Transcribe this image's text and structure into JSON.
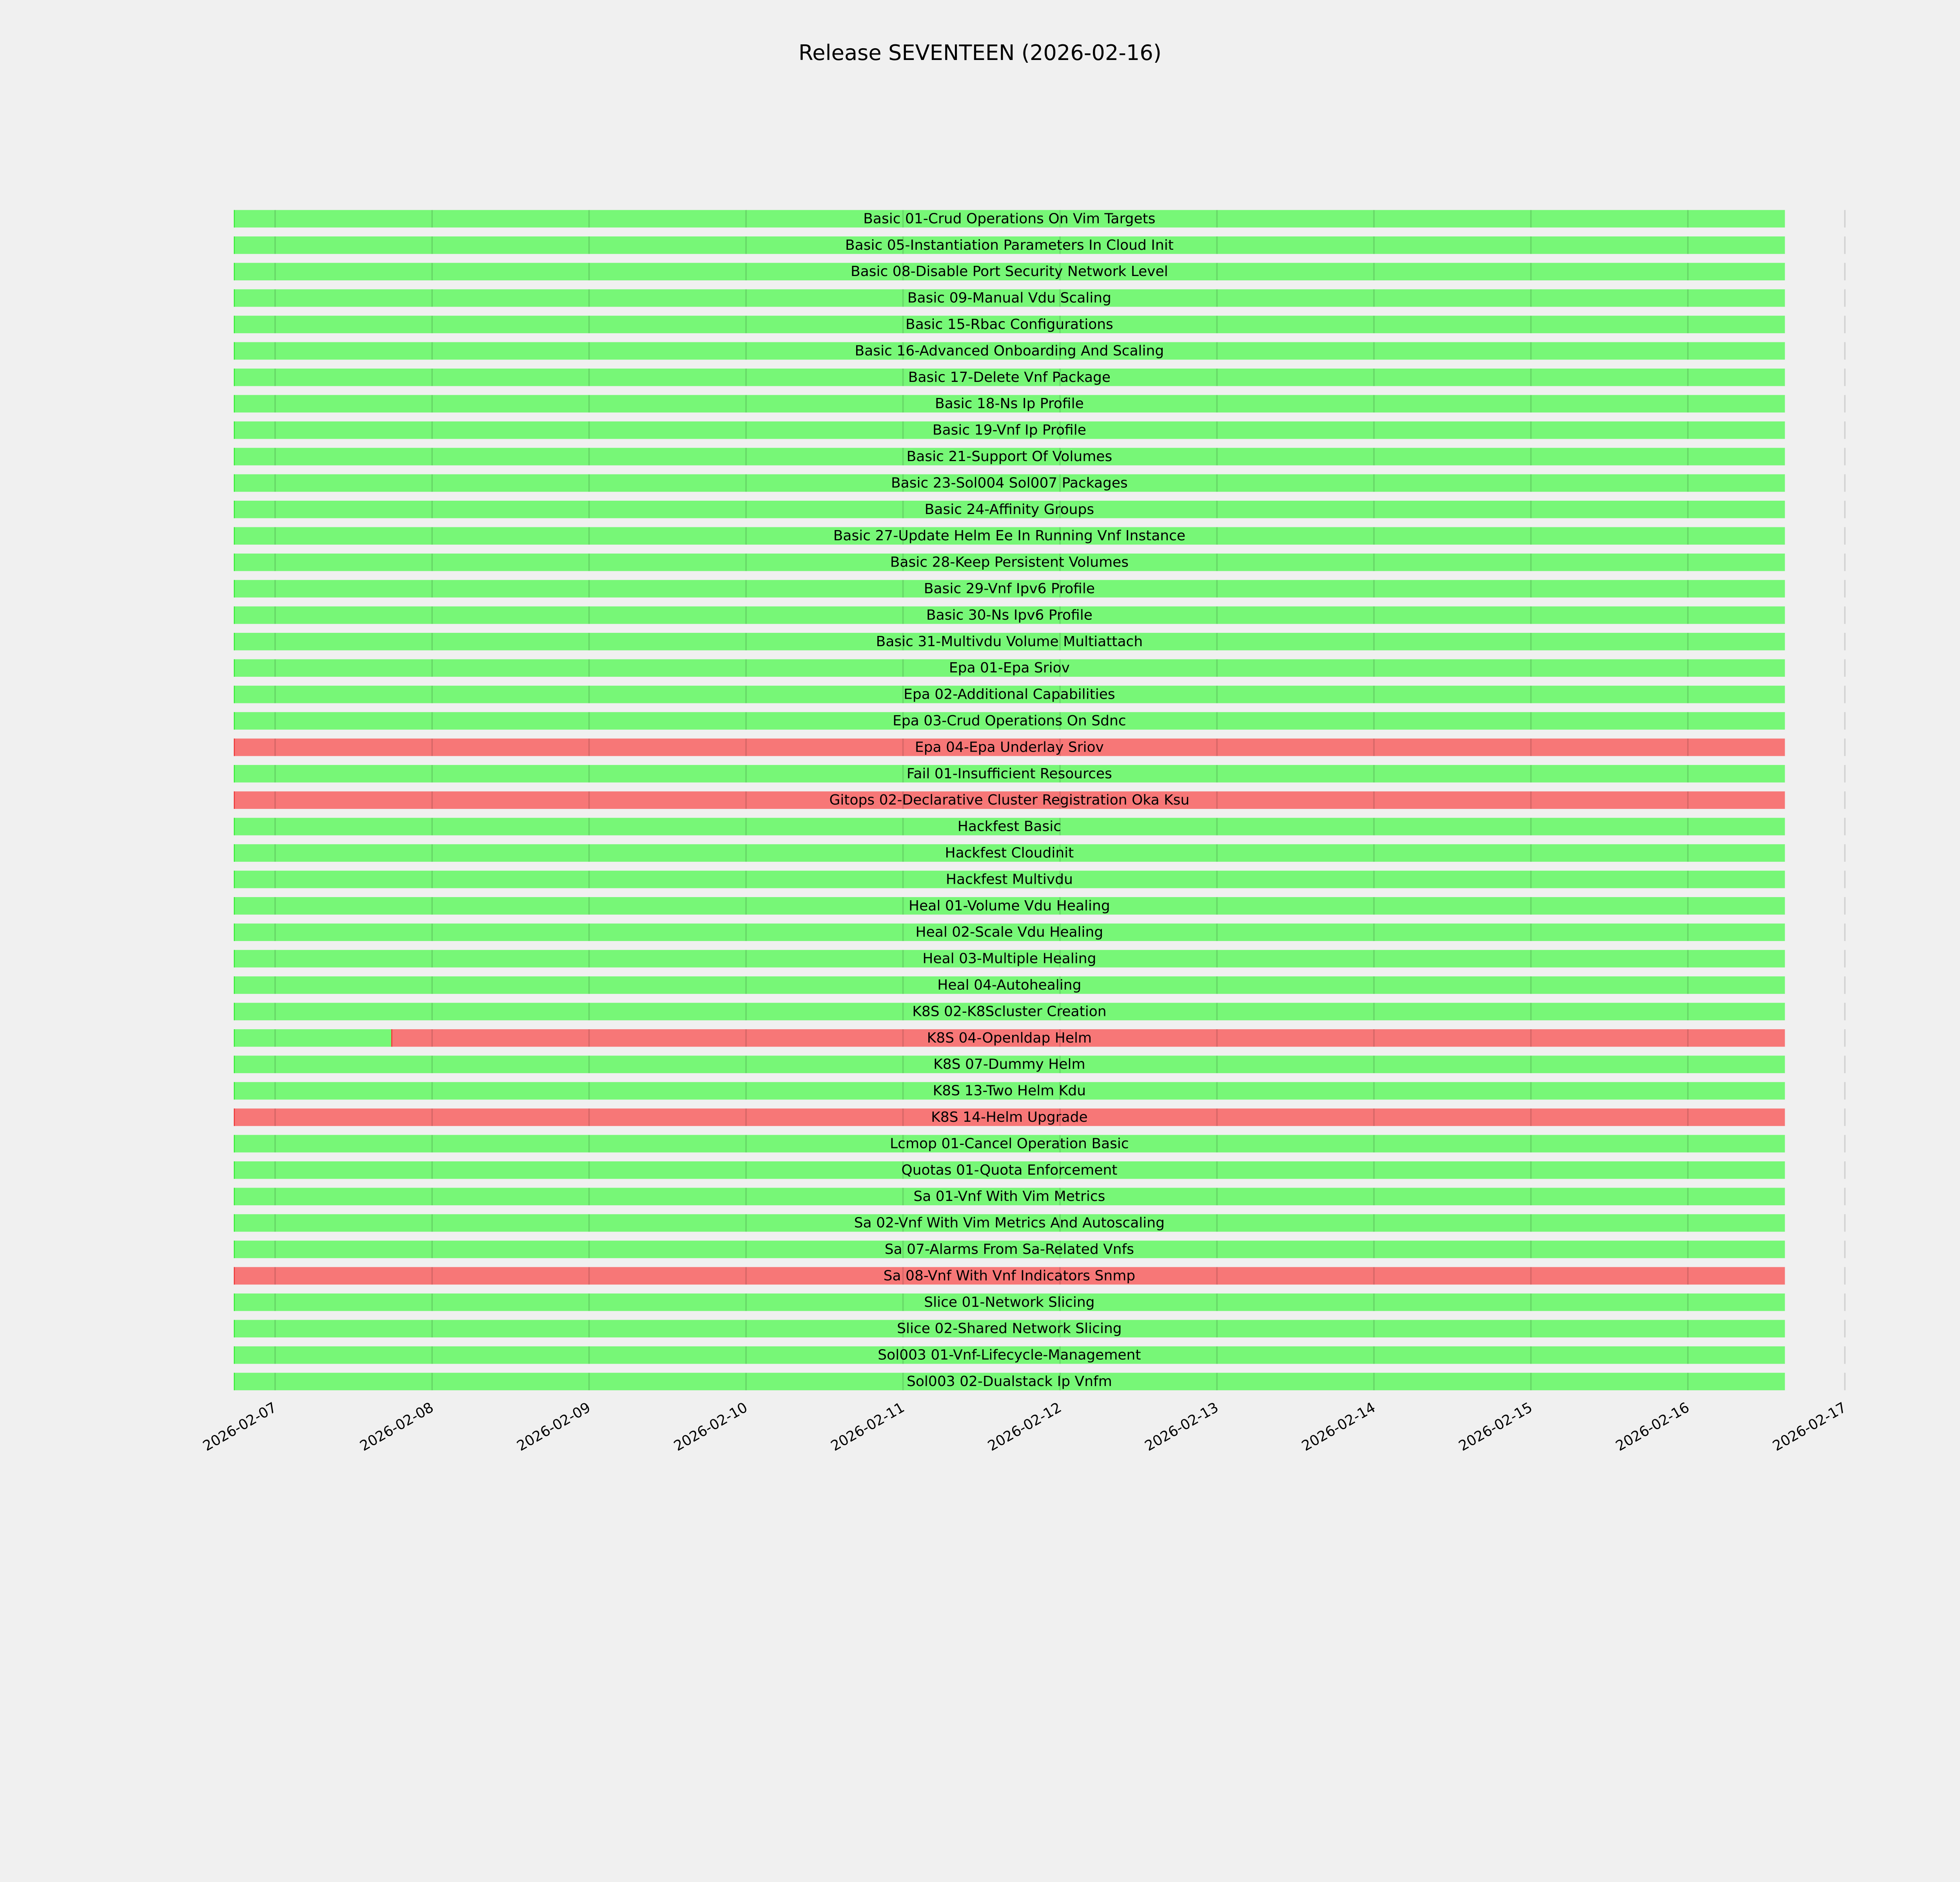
{
  "chart_data": {
    "type": "gantt",
    "title": "Release SEVENTEEN (2026-02-16)",
    "xlabel": "",
    "ylabel": "",
    "x_unit": "days since 2026-02-07 00:00",
    "x_ticks": [
      "2026-02-07",
      "2026-02-08",
      "2026-02-09",
      "2026-02-10",
      "2026-02-11",
      "2026-02-12",
      "2026-02-13",
      "2026-02-14",
      "2026-02-15",
      "2026-02-16",
      "2026-02-17"
    ],
    "range_start": -0.263,
    "range_end": 9.618,
    "grid": true,
    "colors": {
      "pass": "#77f777",
      "fail": "#f77777",
      "pass_edge": "#33ee33",
      "fail_edge": "#ee3333",
      "background": "#f0f0f0"
    },
    "tests": [
      {
        "name": "Basic 01-Crud Operations On Vim Targets",
        "segments": [
          [
            -0.263,
            9.618,
            "pass"
          ]
        ]
      },
      {
        "name": "Basic 05-Instantiation Parameters In Cloud Init",
        "segments": [
          [
            -0.263,
            9.618,
            "pass"
          ]
        ]
      },
      {
        "name": "Basic 08-Disable Port Security Network Level",
        "segments": [
          [
            -0.263,
            9.618,
            "pass"
          ]
        ]
      },
      {
        "name": "Basic 09-Manual Vdu Scaling",
        "segments": [
          [
            -0.263,
            9.618,
            "pass"
          ]
        ]
      },
      {
        "name": "Basic 15-Rbac Configurations",
        "segments": [
          [
            -0.263,
            9.618,
            "pass"
          ]
        ]
      },
      {
        "name": "Basic 16-Advanced Onboarding And Scaling",
        "segments": [
          [
            -0.263,
            9.618,
            "pass"
          ]
        ]
      },
      {
        "name": "Basic 17-Delete Vnf Package",
        "segments": [
          [
            -0.263,
            9.618,
            "pass"
          ]
        ]
      },
      {
        "name": "Basic 18-Ns Ip Profile",
        "segments": [
          [
            -0.263,
            9.618,
            "pass"
          ]
        ]
      },
      {
        "name": "Basic 19-Vnf Ip Profile",
        "segments": [
          [
            -0.263,
            9.618,
            "pass"
          ]
        ]
      },
      {
        "name": "Basic 21-Support Of Volumes",
        "segments": [
          [
            -0.263,
            9.618,
            "pass"
          ]
        ]
      },
      {
        "name": "Basic 23-Sol004 Sol007 Packages",
        "segments": [
          [
            -0.263,
            9.618,
            "pass"
          ]
        ]
      },
      {
        "name": "Basic 24-Affinity Groups",
        "segments": [
          [
            -0.263,
            9.618,
            "pass"
          ]
        ]
      },
      {
        "name": "Basic 27-Update Helm Ee In Running Vnf Instance",
        "segments": [
          [
            -0.263,
            9.618,
            "pass"
          ]
        ]
      },
      {
        "name": "Basic 28-Keep Persistent Volumes",
        "segments": [
          [
            -0.263,
            9.618,
            "pass"
          ]
        ]
      },
      {
        "name": "Basic 29-Vnf Ipv6 Profile",
        "segments": [
          [
            -0.263,
            9.618,
            "pass"
          ]
        ]
      },
      {
        "name": "Basic 30-Ns Ipv6 Profile",
        "segments": [
          [
            -0.263,
            9.618,
            "pass"
          ]
        ]
      },
      {
        "name": "Basic 31-Multivdu Volume Multiattach",
        "segments": [
          [
            -0.263,
            9.618,
            "pass"
          ]
        ]
      },
      {
        "name": "Epa 01-Epa Sriov",
        "segments": [
          [
            -0.263,
            9.618,
            "pass"
          ]
        ]
      },
      {
        "name": "Epa 02-Additional Capabilities",
        "segments": [
          [
            -0.263,
            9.618,
            "pass"
          ]
        ]
      },
      {
        "name": "Epa 03-Crud Operations On Sdnc",
        "segments": [
          [
            -0.263,
            9.618,
            "pass"
          ]
        ]
      },
      {
        "name": "Epa 04-Epa Underlay Sriov",
        "segments": [
          [
            -0.263,
            9.618,
            "fail"
          ]
        ]
      },
      {
        "name": "Fail 01-Insufficient Resources",
        "segments": [
          [
            -0.263,
            9.618,
            "pass"
          ]
        ]
      },
      {
        "name": "Gitops 02-Declarative Cluster Registration Oka Ksu",
        "segments": [
          [
            -0.263,
            9.618,
            "fail"
          ]
        ]
      },
      {
        "name": "Hackfest Basic",
        "segments": [
          [
            -0.263,
            9.618,
            "pass"
          ]
        ]
      },
      {
        "name": "Hackfest Cloudinit",
        "segments": [
          [
            -0.263,
            9.618,
            "pass"
          ]
        ]
      },
      {
        "name": "Hackfest Multivdu",
        "segments": [
          [
            -0.263,
            9.618,
            "pass"
          ]
        ]
      },
      {
        "name": "Heal 01-Volume Vdu Healing",
        "segments": [
          [
            -0.263,
            9.618,
            "pass"
          ]
        ]
      },
      {
        "name": "Heal 02-Scale Vdu Healing",
        "segments": [
          [
            -0.263,
            9.618,
            "pass"
          ]
        ]
      },
      {
        "name": "Heal 03-Multiple Healing",
        "segments": [
          [
            -0.263,
            9.618,
            "pass"
          ]
        ]
      },
      {
        "name": "Heal 04-Autohealing",
        "segments": [
          [
            -0.263,
            9.618,
            "pass"
          ]
        ]
      },
      {
        "name": "K8S 02-K8Scluster Creation",
        "segments": [
          [
            -0.263,
            9.618,
            "pass"
          ]
        ]
      },
      {
        "name": "K8S 04-Openldap Helm",
        "segments": [
          [
            -0.263,
            0.74,
            "pass"
          ],
          [
            0.74,
            9.618,
            "fail"
          ]
        ]
      },
      {
        "name": "K8S 07-Dummy Helm",
        "segments": [
          [
            -0.263,
            9.618,
            "pass"
          ]
        ]
      },
      {
        "name": "K8S 13-Two Helm Kdu",
        "segments": [
          [
            -0.263,
            9.618,
            "pass"
          ]
        ]
      },
      {
        "name": "K8S 14-Helm Upgrade",
        "segments": [
          [
            -0.263,
            9.618,
            "fail"
          ]
        ]
      },
      {
        "name": "Lcmop 01-Cancel Operation Basic",
        "segments": [
          [
            -0.263,
            9.618,
            "pass"
          ]
        ]
      },
      {
        "name": "Quotas 01-Quota Enforcement",
        "segments": [
          [
            -0.263,
            9.618,
            "pass"
          ]
        ]
      },
      {
        "name": "Sa 01-Vnf With Vim Metrics",
        "segments": [
          [
            -0.263,
            9.618,
            "pass"
          ]
        ]
      },
      {
        "name": "Sa 02-Vnf With Vim Metrics And Autoscaling",
        "segments": [
          [
            -0.263,
            9.618,
            "pass"
          ]
        ]
      },
      {
        "name": "Sa 07-Alarms From Sa-Related Vnfs",
        "segments": [
          [
            -0.263,
            9.618,
            "pass"
          ]
        ]
      },
      {
        "name": "Sa 08-Vnf With Vnf Indicators Snmp",
        "segments": [
          [
            -0.263,
            9.618,
            "fail"
          ]
        ]
      },
      {
        "name": "Slice 01-Network Slicing",
        "segments": [
          [
            -0.263,
            9.618,
            "pass"
          ]
        ]
      },
      {
        "name": "Slice 02-Shared Network Slicing",
        "segments": [
          [
            -0.263,
            9.618,
            "pass"
          ]
        ]
      },
      {
        "name": "Sol003 01-Vnf-Lifecycle-Management",
        "segments": [
          [
            -0.263,
            9.618,
            "pass"
          ]
        ]
      },
      {
        "name": "Sol003 02-Dualstack Ip Vnfm",
        "segments": [
          [
            -0.263,
            9.618,
            "pass"
          ]
        ]
      }
    ]
  }
}
